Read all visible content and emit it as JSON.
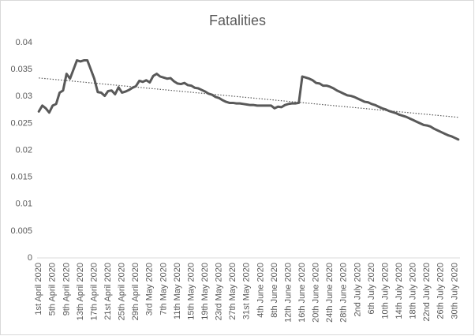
{
  "chart_data": {
    "type": "line",
    "title": "Fatalities",
    "categories": [
      "1st April 2020",
      null,
      null,
      null,
      "5th April 2020",
      null,
      null,
      null,
      "9th April 2020",
      null,
      null,
      null,
      "13th April 2020",
      null,
      null,
      null,
      "17th April 2020",
      null,
      null,
      null,
      "21st April 2020",
      null,
      null,
      null,
      "25th April 2020",
      null,
      null,
      null,
      "29th April 2020",
      null,
      null,
      null,
      "3rd May 2020",
      null,
      null,
      null,
      "7th May 2020",
      null,
      null,
      null,
      "11th May 2020",
      null,
      null,
      null,
      "15th May 2020",
      null,
      null,
      null,
      "19th May 2020",
      null,
      null,
      null,
      "23rd May 2020",
      null,
      null,
      null,
      "27th May 2020",
      null,
      null,
      null,
      "31st May 2020",
      null,
      null,
      null,
      "4th June 2020",
      null,
      null,
      null,
      "8th June 2020",
      null,
      null,
      null,
      "12th June 2020",
      null,
      null,
      null,
      "16th June 2020",
      null,
      null,
      null,
      "20th June 2020",
      null,
      null,
      null,
      "24th June 2020",
      null,
      null,
      null,
      "28th June 2020",
      null,
      null,
      null,
      "2nd July 2020",
      null,
      null,
      null,
      "6th July 2020",
      null,
      null,
      null,
      "10th July 2020",
      null,
      null,
      null,
      "14th July 2020",
      null,
      null,
      null,
      "18th July 2020",
      null,
      null,
      null,
      "22nd July 2020",
      null,
      null,
      null,
      "26th July 2020",
      null,
      null,
      null,
      "30th July 2020",
      null
    ],
    "values": [
      0.0272,
      0.0283,
      0.0278,
      0.027,
      0.0283,
      0.0286,
      0.0307,
      0.0311,
      0.0342,
      0.0333,
      0.035,
      0.0367,
      0.0365,
      0.0367,
      0.0367,
      0.035,
      0.0333,
      0.0308,
      0.0307,
      0.0301,
      0.031,
      0.0311,
      0.0304,
      0.0317,
      0.0307,
      0.0309,
      0.0312,
      0.0316,
      0.0319,
      0.0329,
      0.0327,
      0.033,
      0.0326,
      0.0338,
      0.0342,
      0.0337,
      0.0335,
      0.0333,
      0.0334,
      0.0328,
      0.0324,
      0.0323,
      0.0325,
      0.0321,
      0.032,
      0.0316,
      0.0315,
      0.0312,
      0.0309,
      0.0305,
      0.0303,
      0.0299,
      0.0297,
      0.0293,
      0.029,
      0.0288,
      0.0288,
      0.0287,
      0.0287,
      0.0286,
      0.0285,
      0.0284,
      0.0284,
      0.0283,
      0.0283,
      0.0283,
      0.0283,
      0.0283,
      0.0278,
      0.0281,
      0.028,
      0.0284,
      0.0286,
      0.0287,
      0.0287,
      0.0288,
      0.0337,
      0.0335,
      0.0333,
      0.033,
      0.0325,
      0.0324,
      0.032,
      0.032,
      0.0318,
      0.0315,
      0.0311,
      0.0308,
      0.0305,
      0.0302,
      0.0301,
      0.0299,
      0.0296,
      0.0293,
      0.029,
      0.0289,
      0.0286,
      0.0284,
      0.0281,
      0.0278,
      0.0276,
      0.0273,
      0.0271,
      0.0269,
      0.0266,
      0.0264,
      0.0262,
      0.0259,
      0.0256,
      0.0253,
      0.025,
      0.0247,
      0.0246,
      0.0244,
      0.024,
      0.0237,
      0.0234,
      0.0231,
      0.0228,
      0.0226,
      0.0223,
      0.022
    ],
    "color": "#595959",
    "trendline": "linear",
    "ylim": [
      0,
      0.04
    ],
    "yticks": [
      0,
      0.005,
      0.01,
      0.015,
      0.02,
      0.025,
      0.03,
      0.035,
      0.04
    ],
    "grid": false
  }
}
